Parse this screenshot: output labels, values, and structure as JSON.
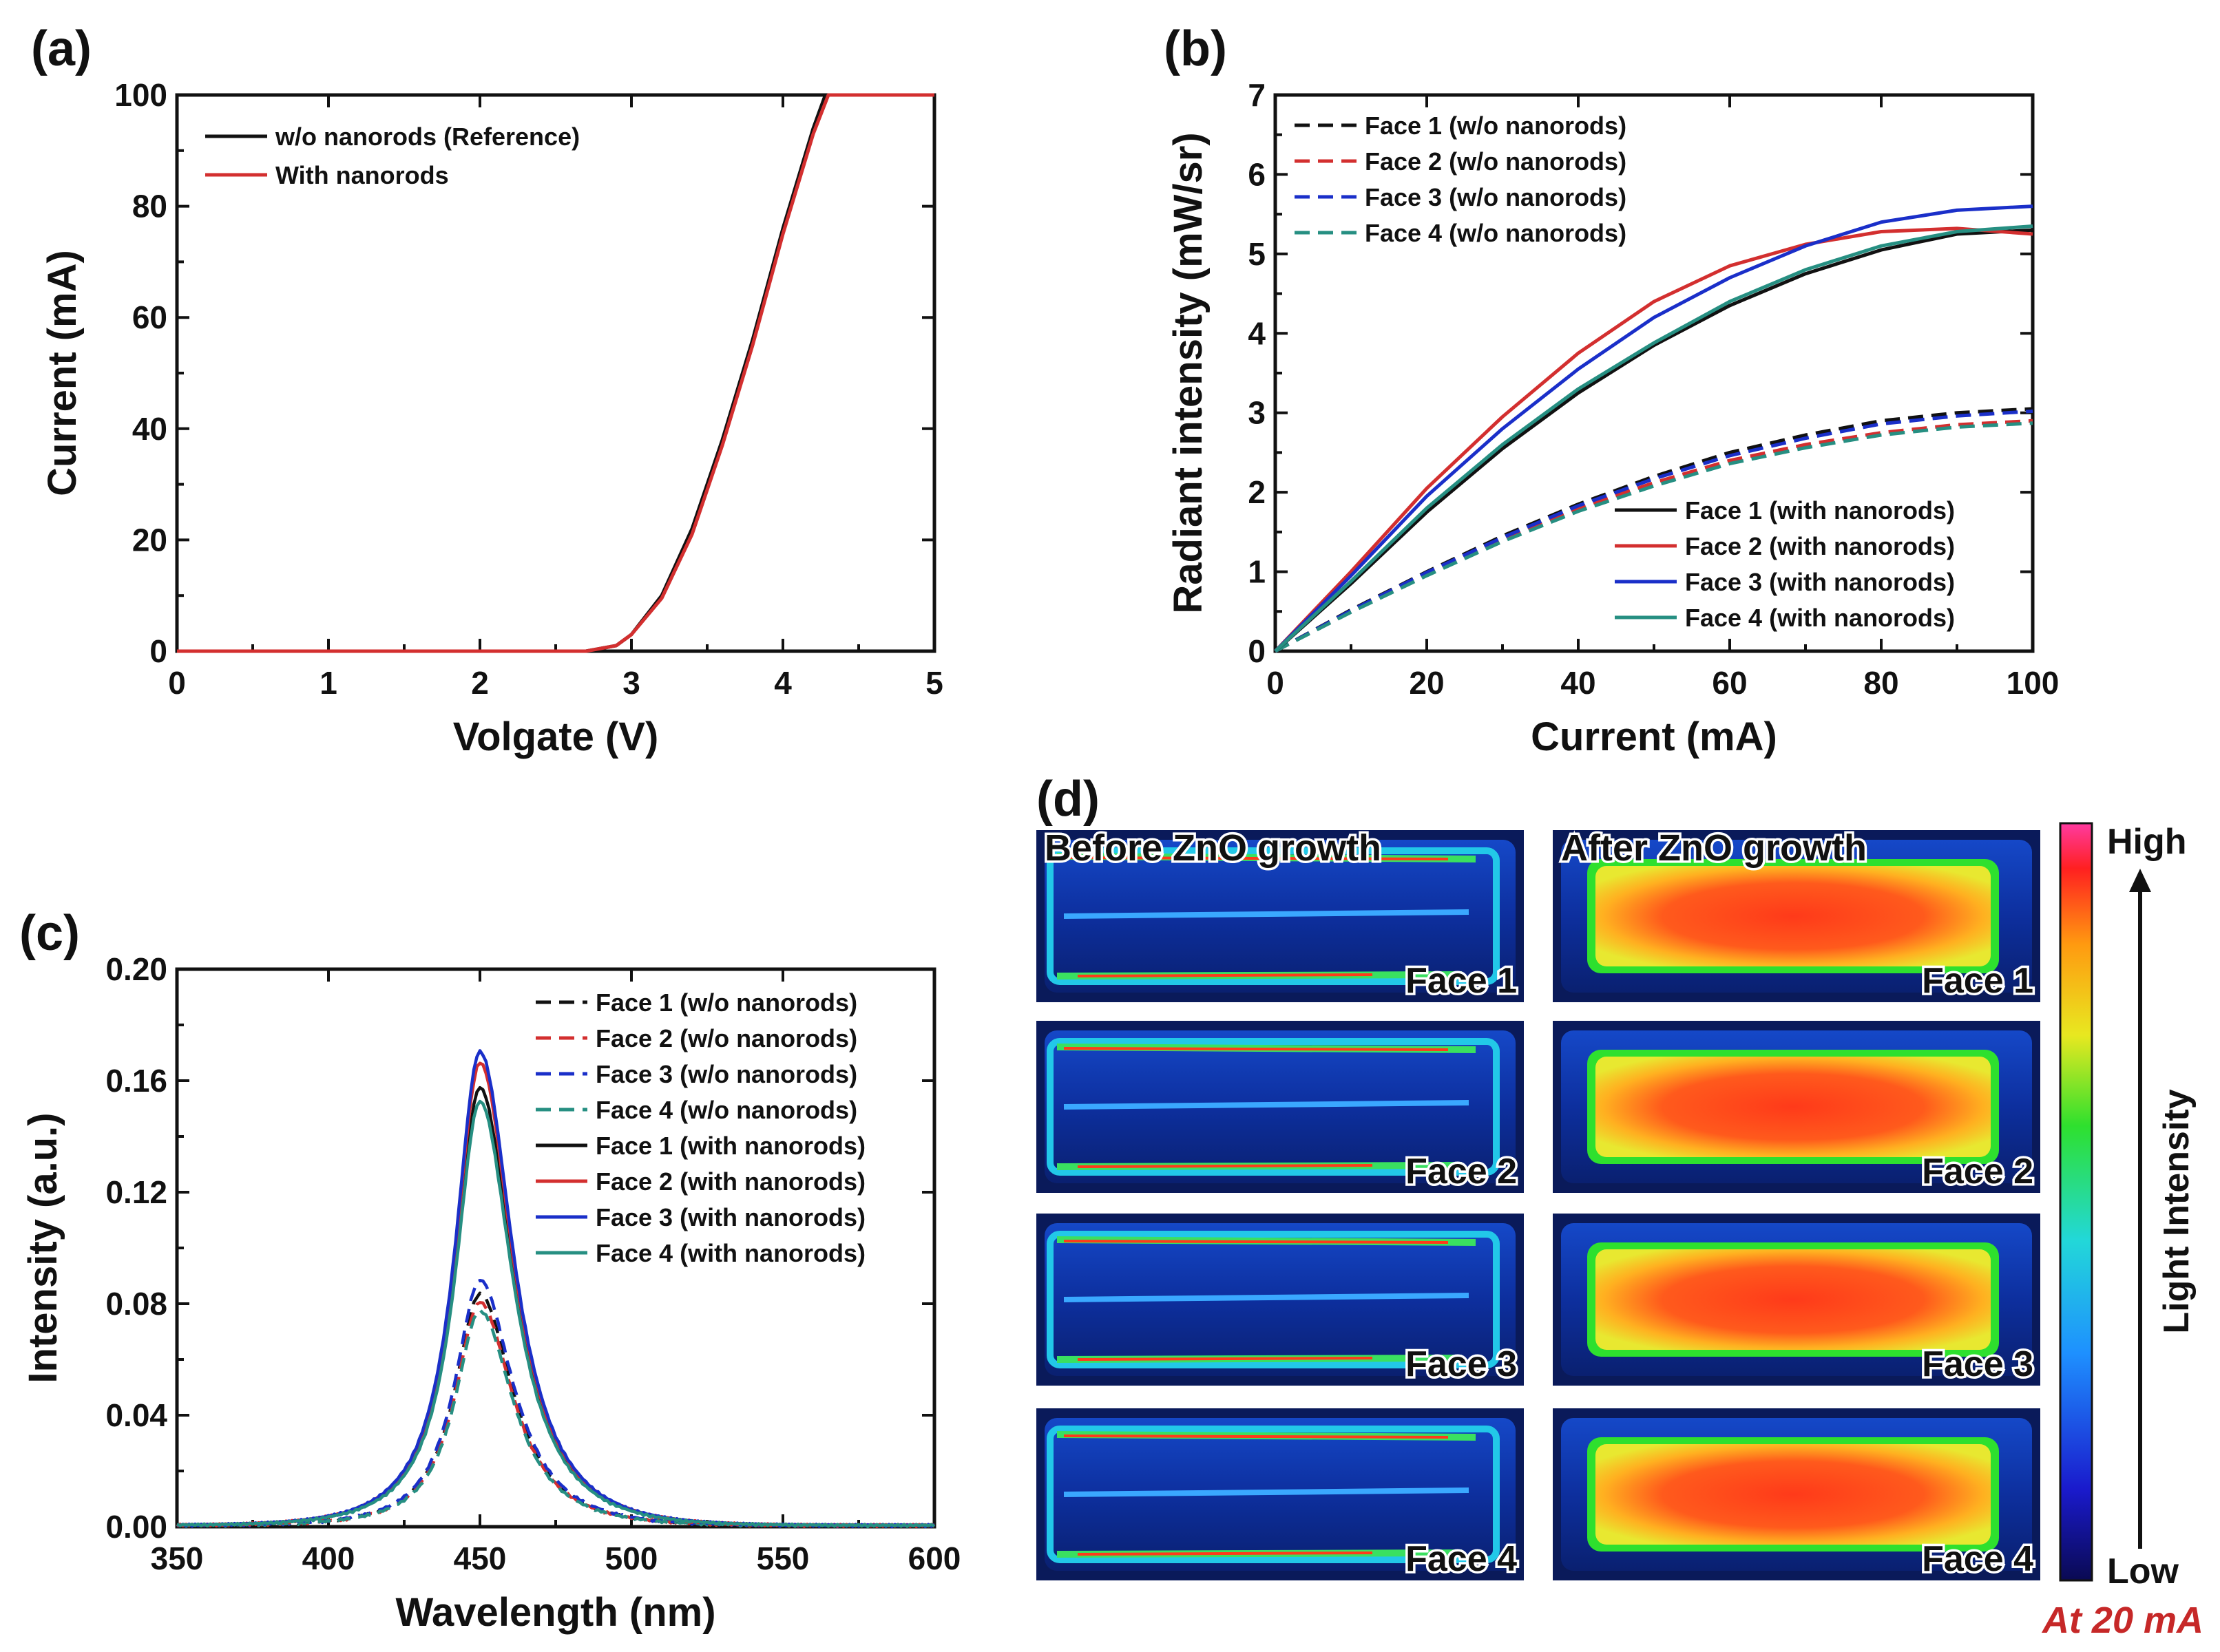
{
  "chart_data": [
    {
      "panel": "(a)",
      "type": "line",
      "xlabel": "Volgate (V)",
      "ylabel": "Current (mA)",
      "xlim": [
        0,
        5
      ],
      "ylim": [
        0,
        100
      ],
      "xticks": [
        0,
        1,
        2,
        3,
        4,
        5
      ],
      "yticks": [
        0,
        20,
        40,
        60,
        80,
        100
      ],
      "legend_position": "top-left",
      "series": [
        {
          "name": "w/o nanorods (Reference)",
          "color": "#111111",
          "dash": "solid",
          "x": [
            0,
            2.7,
            2.9,
            3.0,
            3.2,
            3.4,
            3.6,
            3.8,
            4.0,
            4.2,
            4.28,
            5.0
          ],
          "y": [
            0,
            0,
            1,
            3,
            10,
            22,
            38,
            56,
            76,
            94,
            100,
            100
          ]
        },
        {
          "name": "With nanorods",
          "color": "#d32f2f",
          "dash": "solid",
          "x": [
            0,
            2.7,
            2.9,
            3.0,
            3.2,
            3.4,
            3.6,
            3.8,
            4.0,
            4.2,
            4.3,
            5.0
          ],
          "y": [
            0,
            0,
            1,
            3,
            9.5,
            21,
            37,
            55,
            75,
            93,
            100,
            100
          ]
        }
      ]
    },
    {
      "panel": "(b)",
      "type": "line",
      "xlabel": "Current (mA)",
      "ylabel": "Radiant intensity (mW/sr)",
      "xlim": [
        0,
        100
      ],
      "ylim": [
        0,
        7
      ],
      "xticks": [
        0,
        20,
        40,
        60,
        80,
        100
      ],
      "yticks": [
        0,
        1,
        2,
        3,
        4,
        5,
        6,
        7
      ],
      "legend_positions": [
        "top-left",
        "bottom-right"
      ],
      "x": [
        0,
        10,
        20,
        30,
        40,
        50,
        60,
        70,
        80,
        90,
        100
      ],
      "series": [
        {
          "name": "Face 1 (w/o nanorods)",
          "color": "#111111",
          "dash": "dashed",
          "values": [
            0,
            0.52,
            1.0,
            1.45,
            1.85,
            2.2,
            2.5,
            2.72,
            2.9,
            3.0,
            3.05
          ]
        },
        {
          "name": "Face 2 (w/o nanorods)",
          "color": "#d32f2f",
          "dash": "dashed",
          "values": [
            0,
            0.5,
            0.97,
            1.4,
            1.8,
            2.12,
            2.4,
            2.6,
            2.75,
            2.85,
            2.9
          ]
        },
        {
          "name": "Face 3 (w/o nanorods)",
          "color": "#1a2fc9",
          "dash": "dashed",
          "values": [
            0,
            0.51,
            0.99,
            1.43,
            1.83,
            2.17,
            2.46,
            2.68,
            2.86,
            2.96,
            3.02
          ]
        },
        {
          "name": "Face 4 (w/o nanorods)",
          "color": "#268f82",
          "dash": "dashed",
          "values": [
            0,
            0.49,
            0.95,
            1.38,
            1.76,
            2.08,
            2.36,
            2.56,
            2.72,
            2.82,
            2.87
          ]
        },
        {
          "name": "Face 1 (with nanorods)",
          "color": "#111111",
          "dash": "solid",
          "values": [
            0,
            0.85,
            1.75,
            2.55,
            3.25,
            3.85,
            4.35,
            4.75,
            5.05,
            5.25,
            5.3
          ]
        },
        {
          "name": "Face 2 (with nanorods)",
          "color": "#d32f2f",
          "dash": "solid",
          "values": [
            0,
            1.0,
            2.05,
            2.95,
            3.75,
            4.4,
            4.85,
            5.12,
            5.28,
            5.32,
            5.25
          ]
        },
        {
          "name": "Face 3 (with nanorods)",
          "color": "#1a2fc9",
          "dash": "solid",
          "values": [
            0,
            0.95,
            1.95,
            2.8,
            3.55,
            4.2,
            4.7,
            5.1,
            5.4,
            5.55,
            5.6
          ]
        },
        {
          "name": "Face 4 (with nanorods)",
          "color": "#268f82",
          "dash": "solid",
          "values": [
            0,
            0.88,
            1.8,
            2.6,
            3.3,
            3.88,
            4.4,
            4.8,
            5.1,
            5.28,
            5.35
          ]
        }
      ]
    },
    {
      "panel": "(c)",
      "type": "line",
      "xlabel": "Wavelength (nm)",
      "ylabel": "Intensity (a.u.)",
      "xlim": [
        350,
        600
      ],
      "ylim": [
        0,
        0.2
      ],
      "xticks": [
        350,
        400,
        450,
        500,
        550,
        600
      ],
      "yticks": [
        0.0,
        0.04,
        0.08,
        0.12,
        0.16,
        0.2
      ],
      "ytick_labels": [
        "0.00",
        "0.04",
        "0.08",
        "0.12",
        "0.16",
        "0.20"
      ],
      "legend_position": "top-right",
      "peak_wavelength": 450,
      "series": [
        {
          "name": "Face 1 (w/o nanorods)",
          "color": "#111111",
          "dash": "dashed",
          "peak": 0.083
        },
        {
          "name": "Face 2 (w/o nanorods)",
          "color": "#d32f2f",
          "dash": "dashed",
          "peak": 0.08
        },
        {
          "name": "Face 3 (w/o nanorods)",
          "color": "#1a2fc9",
          "dash": "dashed",
          "peak": 0.088
        },
        {
          "name": "Face 4 (w/o nanorods)",
          "color": "#268f82",
          "dash": "dashed",
          "peak": 0.077
        },
        {
          "name": "Face 1 (with nanorods)",
          "color": "#111111",
          "dash": "solid",
          "peak": 0.157
        },
        {
          "name": "Face 2 (with nanorods)",
          "color": "#d32f2f",
          "dash": "solid",
          "peak": 0.166
        },
        {
          "name": "Face 3 (with nanorods)",
          "color": "#1a2fc9",
          "dash": "solid",
          "peak": 0.17
        },
        {
          "name": "Face 4 (with nanorods)",
          "color": "#268f82",
          "dash": "solid",
          "peak": 0.152
        }
      ]
    }
  ],
  "panel_d": {
    "letter": "(d)",
    "before_title": "Before ZnO growth",
    "after_title": "After ZnO growth",
    "faces": [
      "Face 1",
      "Face 2",
      "Face 3",
      "Face 4"
    ],
    "colorbar": {
      "high": "High",
      "low": "Low",
      "label": "Light Intensity"
    },
    "condition": "At 20 mA"
  }
}
